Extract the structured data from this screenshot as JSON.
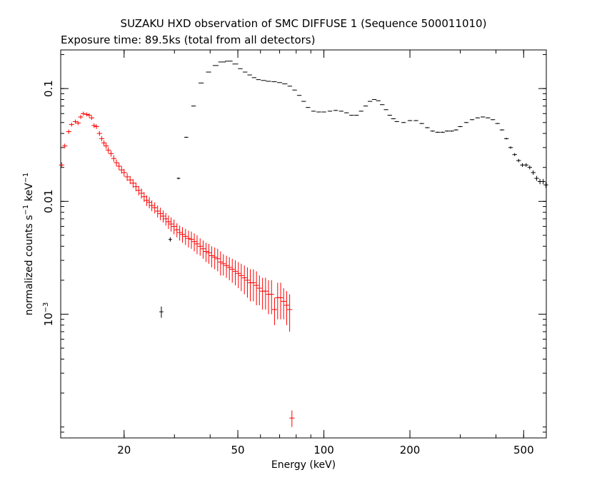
{
  "chart_data": {
    "type": "scatter",
    "title": "SUZAKU HXD observation of SMC DIFFUSE 1 (Sequence 500011010)",
    "subtitle": "Exposure time: 89.5ks (total from all detectors)",
    "xlabel": "Energy (keV)",
    "ylabel_main": "normalized counts s",
    "ylabel_exp1": "−1",
    "ylabel_mid": " keV",
    "ylabel_exp2": "−1",
    "x_scale": "log",
    "y_scale": "log",
    "xlim": [
      12.0,
      600.0
    ],
    "ylim": [
      8e-05,
      0.22
    ],
    "x_ticks": [
      {
        "value": 20,
        "label": "20"
      },
      {
        "value": 50,
        "label": "50"
      },
      {
        "value": 100,
        "label": "100"
      },
      {
        "value": 200,
        "label": "200"
      },
      {
        "value": 500,
        "label": "500"
      }
    ],
    "y_ticks": [
      {
        "value": 0.001,
        "label_base": "10",
        "label_exp": "−3"
      },
      {
        "value": 0.01,
        "label": "0.01"
      },
      {
        "value": 0.1,
        "label": "0.1"
      }
    ],
    "grid": false,
    "series": [
      {
        "color": "#ff0000",
        "points": [
          [
            12.1,
            0.021,
            0.0012
          ],
          [
            12.4,
            0.031,
            0.0015
          ],
          [
            12.8,
            0.0415,
            0.0018
          ],
          [
            13.1,
            0.048,
            0.002
          ],
          [
            13.5,
            0.051,
            0.0021
          ],
          [
            13.8,
            0.0495,
            0.0021
          ],
          [
            14.1,
            0.056,
            0.0023
          ],
          [
            14.4,
            0.06,
            0.0024
          ],
          [
            14.8,
            0.059,
            0.0024
          ],
          [
            15.1,
            0.058,
            0.0024
          ],
          [
            15.4,
            0.055,
            0.0023
          ],
          [
            15.7,
            0.047,
            0.0022
          ],
          [
            16.0,
            0.046,
            0.0022
          ],
          [
            16.4,
            0.04,
            0.002
          ],
          [
            16.7,
            0.036,
            0.0019
          ],
          [
            17.0,
            0.033,
            0.0018
          ],
          [
            17.3,
            0.031,
            0.0018
          ],
          [
            17.6,
            0.0285,
            0.0017
          ],
          [
            18.0,
            0.0265,
            0.0016
          ],
          [
            18.4,
            0.024,
            0.0016
          ],
          [
            18.8,
            0.022,
            0.0015
          ],
          [
            19.2,
            0.0205,
            0.0015
          ],
          [
            19.6,
            0.019,
            0.0014
          ],
          [
            20.0,
            0.018,
            0.0014
          ],
          [
            20.5,
            0.0165,
            0.0013
          ],
          [
            21.0,
            0.0155,
            0.0013
          ],
          [
            21.5,
            0.0145,
            0.0013
          ],
          [
            22.0,
            0.0135,
            0.0012
          ],
          [
            22.5,
            0.0125,
            0.0012
          ],
          [
            23.0,
            0.0118,
            0.0012
          ],
          [
            23.5,
            0.011,
            0.0011
          ],
          [
            24.0,
            0.0102,
            0.0011
          ],
          [
            24.5,
            0.0098,
            0.0011
          ],
          [
            25.0,
            0.0092,
            0.001
          ],
          [
            25.6,
            0.0088,
            0.001
          ],
          [
            26.2,
            0.0082,
            0.001
          ],
          [
            26.8,
            0.0078,
            0.001
          ],
          [
            27.4,
            0.0074,
            0.0009
          ],
          [
            28.0,
            0.007,
            0.0009
          ],
          [
            28.6,
            0.0066,
            0.0009
          ],
          [
            29.2,
            0.0063,
            0.0009
          ],
          [
            29.9,
            0.006,
            0.0009
          ],
          [
            30.6,
            0.0056,
            0.0008
          ],
          [
            31.3,
            0.0053,
            0.0008
          ],
          [
            32.0,
            0.0051,
            0.0008
          ],
          [
            32.8,
            0.0049,
            0.0008
          ],
          [
            33.6,
            0.0047,
            0.0008
          ],
          [
            34.4,
            0.0046,
            0.0008
          ],
          [
            35.2,
            0.0044,
            0.0008
          ],
          [
            36.0,
            0.0042,
            0.0008
          ],
          [
            36.9,
            0.004,
            0.0007
          ],
          [
            37.8,
            0.0038,
            0.0007
          ],
          [
            38.7,
            0.0036,
            0.0007
          ],
          [
            39.6,
            0.0035,
            0.0007
          ],
          [
            40.5,
            0.0033,
            0.0007
          ],
          [
            41.5,
            0.0032,
            0.0007
          ],
          [
            42.5,
            0.0031,
            0.0007
          ],
          [
            43.5,
            0.0029,
            0.0007
          ],
          [
            44.5,
            0.0028,
            0.0006
          ],
          [
            45.6,
            0.0027,
            0.0006
          ],
          [
            46.7,
            0.0026,
            0.0006
          ],
          [
            47.8,
            0.0025,
            0.0006
          ],
          [
            49.0,
            0.0024,
            0.0006
          ],
          [
            50.2,
            0.0023,
            0.0006
          ],
          [
            51.4,
            0.0022,
            0.0006
          ],
          [
            52.7,
            0.0021,
            0.0006
          ],
          [
            54.0,
            0.002,
            0.0006
          ],
          [
            55.3,
            0.0019,
            0.0006
          ],
          [
            56.7,
            0.0019,
            0.0006
          ],
          [
            58.1,
            0.0018,
            0.0006
          ],
          [
            59.5,
            0.0017,
            0.0005
          ],
          [
            61.0,
            0.0016,
            0.0005
          ],
          [
            62.5,
            0.0016,
            0.0005
          ],
          [
            64.0,
            0.0015,
            0.0005
          ],
          [
            65.6,
            0.0015,
            0.0005
          ],
          [
            67.2,
            0.0011,
            0.0003
          ],
          [
            68.9,
            0.0014,
            0.0005
          ],
          [
            70.6,
            0.0014,
            0.0005
          ],
          [
            72.3,
            0.0013,
            0.0004
          ],
          [
            74.1,
            0.0012,
            0.0004
          ],
          [
            75.9,
            0.0011,
            0.0004
          ],
          [
            77.3,
            0.00012,
            2e-05
          ]
        ]
      },
      {
        "color": "#000000",
        "points": [
          [
            27.0,
            0.00105,
            0.00012,
            0.7
          ],
          [
            29.0,
            0.0046,
            0.0002,
            0.6
          ],
          [
            31.0,
            0.016,
            0.0003,
            0.6
          ],
          [
            33.0,
            0.037,
            0.0004,
            0.7
          ],
          [
            35.0,
            0.07,
            0.0005,
            0.8
          ],
          [
            37.2,
            0.112,
            0.0005,
            0.9
          ],
          [
            39.5,
            0.14,
            0.0005,
            0.9
          ],
          [
            41.8,
            0.16,
            0.0005,
            1.0
          ],
          [
            44.0,
            0.172,
            0.0005,
            1.3
          ],
          [
            46.5,
            0.175,
            0.0005,
            1.3
          ],
          [
            49.0,
            0.165,
            0.0005,
            1.0
          ],
          [
            51.0,
            0.15,
            0.0005,
            0.8
          ],
          [
            53.0,
            0.14,
            0.0005,
            0.8
          ],
          [
            55.0,
            0.132,
            0.0005,
            0.8
          ],
          [
            57.0,
            0.125,
            0.0005,
            0.8
          ],
          [
            59.0,
            0.12,
            0.0005,
            0.8
          ],
          [
            61.5,
            0.118,
            0.0005,
            0.9
          ],
          [
            64.0,
            0.116,
            0.0005,
            0.9
          ],
          [
            67.0,
            0.115,
            0.0005,
            0.9
          ],
          [
            70.0,
            0.113,
            0.0005,
            0.9
          ],
          [
            73.0,
            0.11,
            0.0005,
            0.9
          ],
          [
            76.0,
            0.105,
            0.0005,
            0.8
          ],
          [
            79.0,
            0.097,
            0.0005,
            0.8
          ],
          [
            82.0,
            0.087,
            0.0005,
            0.8
          ],
          [
            85.0,
            0.077,
            0.0005,
            0.8
          ],
          [
            88.0,
            0.068,
            0.0005,
            0.8
          ],
          [
            92.0,
            0.063,
            0.0005,
            0.8
          ],
          [
            96.0,
            0.062,
            0.0005,
            0.8
          ],
          [
            100,
            0.062,
            0.0005,
            0.8
          ],
          [
            105,
            0.063,
            0.0005,
            0.8
          ],
          [
            110,
            0.064,
            0.0005,
            0.8
          ],
          [
            115,
            0.063,
            0.0005,
            0.8
          ],
          [
            120,
            0.061,
            0.0005,
            0.8
          ],
          [
            125,
            0.058,
            0.0005,
            0.8
          ],
          [
            130,
            0.058,
            0.0005,
            0.8
          ],
          [
            135,
            0.063,
            0.0005,
            0.8
          ],
          [
            140,
            0.07,
            0.0005,
            0.8
          ],
          [
            145,
            0.077,
            0.0005,
            0.8
          ],
          [
            150,
            0.08,
            0.0005,
            0.8
          ],
          [
            155,
            0.078,
            0.0005,
            0.8
          ],
          [
            160,
            0.072,
            0.0005,
            0.8
          ],
          [
            165,
            0.065,
            0.0005,
            0.8
          ],
          [
            170,
            0.058,
            0.0005,
            0.8
          ],
          [
            175,
            0.054,
            0.0005,
            0.8
          ],
          [
            180,
            0.051,
            0.0005,
            0.8
          ],
          [
            190,
            0.05,
            0.0005,
            0.8
          ],
          [
            200,
            0.052,
            0.0005,
            0.8
          ],
          [
            210,
            0.052,
            0.0005,
            0.8
          ],
          [
            220,
            0.049,
            0.0005,
            0.8
          ],
          [
            230,
            0.045,
            0.0005,
            0.8
          ],
          [
            240,
            0.042,
            0.0005,
            0.8
          ],
          [
            250,
            0.041,
            0.0005,
            0.8
          ],
          [
            260,
            0.041,
            0.0005,
            0.8
          ],
          [
            270,
            0.042,
            0.0005,
            0.8
          ],
          [
            280,
            0.042,
            0.0005,
            0.8
          ],
          [
            290,
            0.043,
            0.0005,
            0.8
          ],
          [
            300,
            0.046,
            0.0005,
            0.8
          ],
          [
            315,
            0.05,
            0.0005,
            0.8
          ],
          [
            330,
            0.053,
            0.0005,
            0.8
          ],
          [
            345,
            0.055,
            0.0005,
            0.8
          ],
          [
            360,
            0.056,
            0.0005,
            0.8
          ],
          [
            375,
            0.055,
            0.0005,
            0.8
          ],
          [
            390,
            0.053,
            0.0005,
            0.8
          ],
          [
            405,
            0.049,
            0.0005,
            0.8
          ],
          [
            420,
            0.043,
            0.0005,
            0.8
          ],
          [
            435,
            0.036,
            0.0006,
            0.8
          ],
          [
            450,
            0.03,
            0.0007,
            0.8
          ],
          [
            465,
            0.026,
            0.0008,
            0.8
          ],
          [
            480,
            0.023,
            0.0008,
            0.8
          ],
          [
            495,
            0.021,
            0.0008,
            0.8
          ],
          [
            510,
            0.021,
            0.0008,
            0.8
          ],
          [
            525,
            0.02,
            0.0008,
            0.8
          ],
          [
            540,
            0.018,
            0.0008,
            0.8
          ],
          [
            555,
            0.016,
            0.0008,
            0.8
          ],
          [
            570,
            0.015,
            0.0008,
            0.8
          ],
          [
            585,
            0.015,
            0.0008,
            0.8
          ],
          [
            598,
            0.014,
            0.0008,
            0.8
          ]
        ]
      }
    ]
  }
}
